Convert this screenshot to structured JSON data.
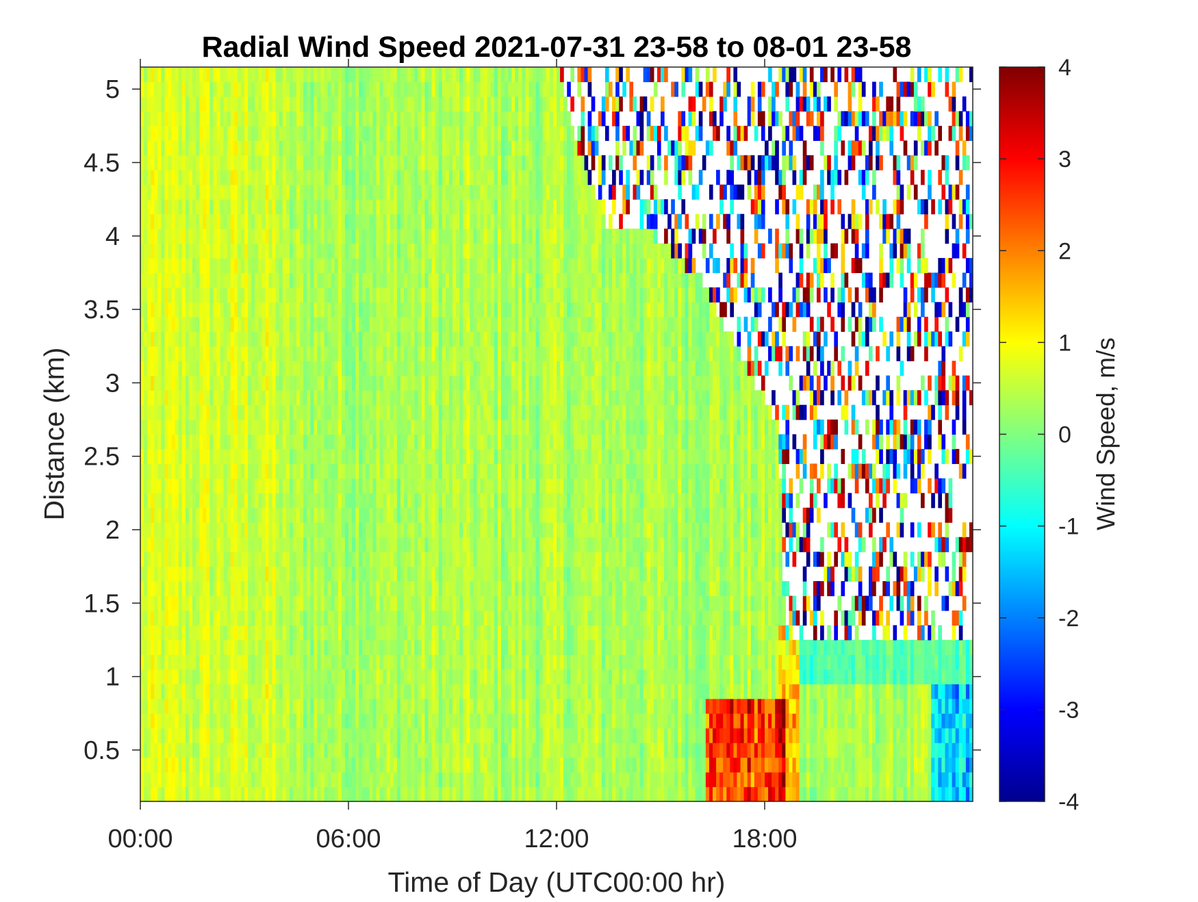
{
  "chart_data": {
    "type": "heatmap",
    "title": "Radial Wind Speed 2021-07-31 23-58 to 08-01 23-58",
    "xlabel": "Time of Day (UTC00:00 hr)",
    "ylabel": "Distance (km)",
    "xlim": [
      0,
      24
    ],
    "ylim": [
      0.15,
      5.15
    ],
    "x_ticks": [
      {
        "value": 0,
        "label": "00:00"
      },
      {
        "value": 6,
        "label": "06:00"
      },
      {
        "value": 12,
        "label": "12:00"
      },
      {
        "value": 18,
        "label": "18:00"
      }
    ],
    "y_ticks": [
      {
        "value": 0.5,
        "label": "0.5"
      },
      {
        "value": 1,
        "label": "1"
      },
      {
        "value": 1.5,
        "label": "1.5"
      },
      {
        "value": 2,
        "label": "2"
      },
      {
        "value": 2.5,
        "label": "2.5"
      },
      {
        "value": 3,
        "label": "3"
      },
      {
        "value": 3.5,
        "label": "3.5"
      },
      {
        "value": 4,
        "label": "4"
      },
      {
        "value": 4.5,
        "label": "4.5"
      },
      {
        "value": 5,
        "label": "5"
      }
    ],
    "colorbar": {
      "label": "Wind Speed, m/s",
      "range": [
        -4,
        4
      ],
      "colormap": "jet",
      "ticks": [
        {
          "value": 4,
          "label": "4"
        },
        {
          "value": 3,
          "label": "3"
        },
        {
          "value": 2,
          "label": "2"
        },
        {
          "value": 1,
          "label": "1"
        },
        {
          "value": 0,
          "label": "0"
        },
        {
          "value": -1,
          "label": "-1"
        },
        {
          "value": -2,
          "label": "-2"
        },
        {
          "value": -3,
          "label": "-3"
        },
        {
          "value": -4,
          "label": "-4"
        }
      ],
      "colors": [
        "#00008f",
        "#0000ff",
        "#0080ff",
        "#00ffff",
        "#80ff80",
        "#ffff00",
        "#ff8000",
        "#ff0000",
        "#800000"
      ]
    },
    "grid": false,
    "missing_data_color": "#ffffff",
    "valid_range_boundary": [
      {
        "time_hr": 0,
        "max_distance_km": 5.15
      },
      {
        "time_hr": 12.0,
        "max_distance_km": 5.15
      },
      {
        "time_hr": 12.5,
        "max_distance_km": 4.7
      },
      {
        "time_hr": 13.4,
        "max_distance_km": 4.1
      },
      {
        "time_hr": 14.8,
        "max_distance_km": 4.0
      },
      {
        "time_hr": 16.2,
        "max_distance_km": 3.7
      },
      {
        "time_hr": 17.5,
        "max_distance_km": 3.1
      },
      {
        "time_hr": 18.4,
        "max_distance_km": 2.7
      },
      {
        "time_hr": 18.6,
        "max_distance_km": 1.2
      },
      {
        "time_hr": 21.8,
        "max_distance_km": 1.2
      },
      {
        "time_hr": 22.4,
        "max_distance_km": 1.2
      },
      {
        "time_hr": 24,
        "max_distance_km": 1.2
      }
    ],
    "typical_values": {
      "00:00-12:00, all heights": "about 0 to 0.8 m/s",
      "16:30-18:30, below 0.8 km": "up to about 3.5 m/s",
      "23:00-24:00, below 1 km": "down to about -2.5 m/s",
      "noise region above valid range": "-4 to 4 m/s"
    }
  }
}
